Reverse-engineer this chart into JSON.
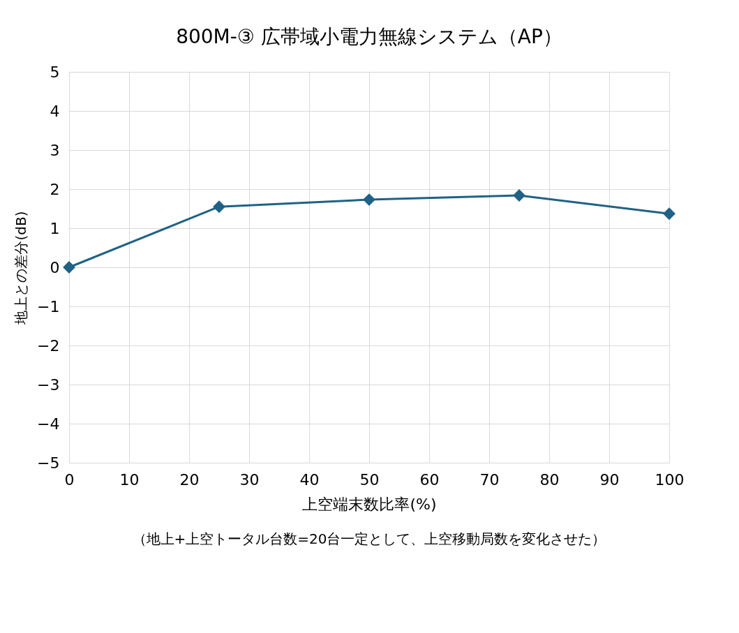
{
  "chart_data": {
    "type": "line",
    "title": "800M-③ 広帯域小電力無線システム（AP）",
    "xlabel": "上空端末数比率(%)",
    "ylabel": "地上との差分(dB)",
    "annotations": [
      "（地上+上空トータル台数=20台一定として、上空移動局数を変化させた）"
    ],
    "x": [
      0,
      25,
      50,
      75,
      100
    ],
    "series": [
      {
        "color": "#1f6285",
        "values": [
          0,
          1.55,
          1.73,
          1.84,
          1.37
        ]
      }
    ],
    "xlim": [
      0,
      100
    ],
    "xticks": [
      0,
      10,
      20,
      30,
      40,
      50,
      60,
      70,
      80,
      90,
      100
    ],
    "ylim": [
      -5,
      5
    ],
    "yticks": [
      -5,
      -4,
      -3,
      -2,
      -1,
      0,
      1,
      2,
      3,
      4,
      5
    ],
    "grid": true,
    "marker": "diamond",
    "line_style": "solid"
  }
}
